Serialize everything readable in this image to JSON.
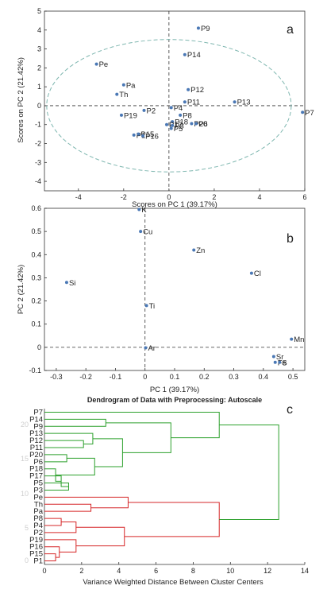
{
  "chart_data": [
    {
      "id": "a",
      "type": "scatter",
      "panel_label": "a",
      "xlabel": "Scores on PC 1 (39.17%)",
      "ylabel": "Scores on PC 2 (21.42%)",
      "xlim": [
        -5.5,
        6
      ],
      "ylim": [
        -4.5,
        5
      ],
      "xticks": [
        -4,
        -2,
        0,
        2,
        4,
        6
      ],
      "yticks": [
        -4,
        -3,
        -2,
        -1,
        0,
        1,
        2,
        3,
        4,
        5
      ],
      "crosshair": {
        "x": 0,
        "y": 0
      },
      "ellipse": {
        "cx": 0,
        "cy": 0,
        "rx": 5.4,
        "ry": 3.5,
        "color": "#7fb7b0"
      },
      "marker_color": "#4a78b5",
      "points": [
        {
          "label": "P9",
          "x": 1.3,
          "y": 4.1
        },
        {
          "label": "P14",
          "x": 0.7,
          "y": 2.7
        },
        {
          "label": "Pe",
          "x": -3.2,
          "y": 2.2
        },
        {
          "label": "Pa",
          "x": -2.0,
          "y": 1.1
        },
        {
          "label": "Th",
          "x": -2.3,
          "y": 0.6
        },
        {
          "label": "P12",
          "x": 0.85,
          "y": 0.85
        },
        {
          "label": "P11",
          "x": 0.7,
          "y": 0.2
        },
        {
          "label": "P13",
          "x": 2.9,
          "y": 0.2
        },
        {
          "label": "P7",
          "x": 5.9,
          "y": -0.35
        },
        {
          "label": "P2",
          "x": -1.1,
          "y": -0.25
        },
        {
          "label": "P4",
          "x": 0.1,
          "y": -0.1
        },
        {
          "label": "P19",
          "x": -2.1,
          "y": -0.5
        },
        {
          "label": "P8",
          "x": 0.5,
          "y": -0.5
        },
        {
          "label": "P18",
          "x": 0.15,
          "y": -0.85
        },
        {
          "label": "P20",
          "x": 1.0,
          "y": -0.95
        },
        {
          "label": "P6",
          "x": 1.2,
          "y": -0.95
        },
        {
          "label": "P17",
          "x": -0.1,
          "y": -1.0
        },
        {
          "label": "P5",
          "x": 0.1,
          "y": -1.2
        },
        {
          "label": "P3",
          "x": 0.15,
          "y": -1.05
        },
        {
          "label": "P1",
          "x": -1.55,
          "y": -1.55
        },
        {
          "label": "P15",
          "x": -1.35,
          "y": -1.5
        },
        {
          "label": "P16",
          "x": -1.15,
          "y": -1.6
        }
      ]
    },
    {
      "id": "b",
      "type": "scatter",
      "panel_label": "b",
      "xlabel": "PC 1 (39.17%)",
      "ylabel": "PC 2 (21.42%)",
      "xlim": [
        -0.34,
        0.54
      ],
      "ylim": [
        -0.1,
        0.6
      ],
      "xticks": [
        -0.3,
        -0.2,
        -0.1,
        0,
        0.1,
        0.2,
        0.3,
        0.4,
        0.5
      ],
      "yticks": [
        -0.1,
        0,
        0.1,
        0.2,
        0.3,
        0.4,
        0.5,
        0.6
      ],
      "crosshair": {
        "x": 0,
        "y": 0
      },
      "marker_color": "#4a78b5",
      "points": [
        {
          "label": "K",
          "x": -0.02,
          "y": 0.595
        },
        {
          "label": "Cu",
          "x": -0.015,
          "y": 0.5
        },
        {
          "label": "Zn",
          "x": 0.165,
          "y": 0.42
        },
        {
          "label": "Cl",
          "x": 0.36,
          "y": 0.32
        },
        {
          "label": "Si",
          "x": -0.265,
          "y": 0.28
        },
        {
          "label": "Ti",
          "x": 0.005,
          "y": 0.18
        },
        {
          "label": "Mn",
          "x": 0.495,
          "y": 0.035
        },
        {
          "label": "Ar",
          "x": 0.002,
          "y": -0.002
        },
        {
          "label": "Sr",
          "x": 0.435,
          "y": -0.04
        },
        {
          "label": "Fe",
          "x": 0.44,
          "y": -0.065
        },
        {
          "label": "S",
          "x": 0.455,
          "y": -0.065
        }
      ]
    },
    {
      "id": "c",
      "type": "dendrogram",
      "panel_label": "c",
      "title": "Dendrogram of Data with Preprocessing: Autoscale",
      "xlabel": "Variance Weighted Distance Between Cluster Centers",
      "xlim": [
        0,
        14
      ],
      "xticks": [
        0,
        2,
        4,
        6,
        8,
        10,
        12,
        14
      ],
      "y_axis_labels_faint": [
        "20",
        "15",
        "10",
        "5",
        "0"
      ],
      "leaf_order": [
        "P7",
        "P14",
        "P9",
        "P13",
        "P12",
        "P11",
        "P20",
        "P6",
        "P18",
        "P17",
        "P5",
        "P3",
        "Pe",
        "Th",
        "Pa",
        "P8",
        "P4",
        "P2",
        "P19",
        "P16",
        "P15",
        "P1"
      ],
      "clusters": [
        {
          "name": "green",
          "color": "#2ca02c",
          "leaves": [
            "P7",
            "P14",
            "P9",
            "P13",
            "P12",
            "P11",
            "P20",
            "P6",
            "P18",
            "P17",
            "P5",
            "P3"
          ]
        },
        {
          "name": "red",
          "color": "#d62728",
          "leaves": [
            "Pe",
            "Th",
            "Pa",
            "P8",
            "P4",
            "P2",
            "P19",
            "P16",
            "P15",
            "P1"
          ]
        }
      ],
      "root_color": "#2ca02c",
      "links": [
        {
          "a": "P15",
          "b": "P1",
          "h": 0.6,
          "c": "red"
        },
        {
          "a": "P16",
          "b": "L1",
          "h": 0.8,
          "c": "red",
          "id": "L2"
        },
        {
          "a": "P19",
          "b": "L2",
          "h": 1.7,
          "c": "red",
          "id": "L3"
        },
        {
          "a": "P8",
          "b": "P4",
          "h": 0.9,
          "c": "red",
          "id": "L4"
        },
        {
          "a": "L4",
          "b": "P2",
          "h": 1.7,
          "c": "red",
          "id": "L5"
        },
        {
          "a": "L5",
          "b": "L3",
          "h": 4.3,
          "c": "red",
          "id": "L6"
        },
        {
          "a": "Th",
          "b": "Pa",
          "h": 2.5,
          "c": "red",
          "id": "L7"
        },
        {
          "a": "Pe",
          "b": "L7",
          "h": 4.5,
          "c": "red",
          "id": "L8"
        },
        {
          "a": "L8",
          "b": "L6",
          "h": 9.4,
          "c": "red",
          "id": "L9"
        },
        {
          "a": "P5",
          "b": "P3",
          "h": 1.3,
          "c": "green",
          "id": "G1"
        },
        {
          "a": "P17",
          "b": "G1",
          "h": 0.9,
          "c": "green",
          "id": "G2"
        },
        {
          "a": "P18",
          "b": "G2",
          "h": 0.6,
          "c": "green",
          "id": "G3"
        },
        {
          "a": "P20",
          "b": "P6",
          "h": 1.2,
          "c": "green",
          "id": "G4"
        },
        {
          "a": "G4",
          "b": "G3",
          "h": 2.7,
          "c": "green",
          "id": "G5"
        },
        {
          "a": "P12",
          "b": "P11",
          "h": 2.1,
          "c": "green",
          "id": "G6"
        },
        {
          "a": "P13",
          "b": "G6",
          "h": 2.6,
          "c": "green",
          "id": "G7"
        },
        {
          "a": "G7",
          "b": "G5",
          "h": 4.2,
          "c": "green",
          "id": "G8"
        },
        {
          "a": "P14",
          "b": "P9",
          "h": 3.3,
          "c": "green",
          "id": "G9"
        },
        {
          "a": "G9",
          "b": "G8",
          "h": 6.8,
          "c": "green",
          "id": "G10"
        },
        {
          "a": "P7",
          "b": "G10",
          "h": 9.4,
          "c": "green",
          "id": "G11"
        },
        {
          "a": "G11",
          "b": "L9",
          "h": 12.6,
          "c": "green",
          "id": "ROOT"
        }
      ]
    }
  ]
}
